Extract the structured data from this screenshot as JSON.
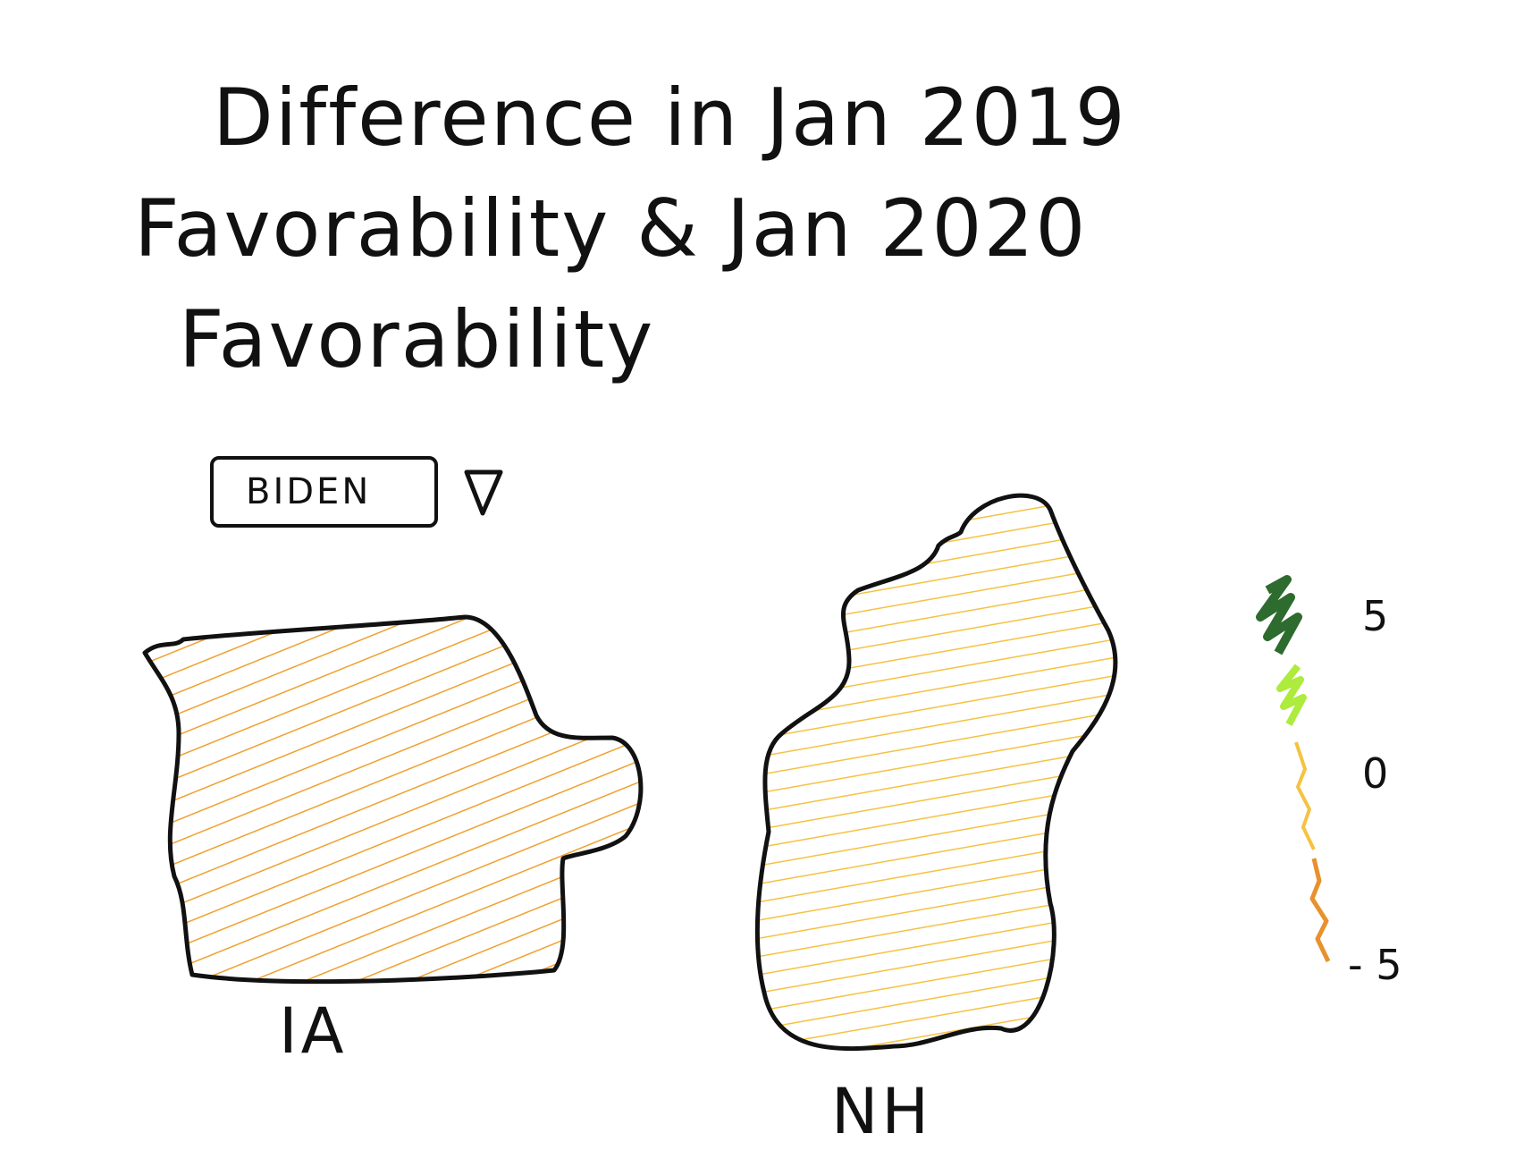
{
  "title": {
    "line1": "Difference in Jan 2019",
    "line2": "Favorability & Jan 2020",
    "line3": "Favorability"
  },
  "selector": {
    "value": "BIDEN"
  },
  "states": [
    {
      "label": "IA",
      "color": "#F0A030"
    },
    {
      "label": "NH",
      "color": "#F5C242"
    }
  ],
  "legend": {
    "ticks": [
      "5",
      "0",
      "- 5"
    ],
    "colors": [
      "#2E6B2E",
      "#ADEB3C",
      "#F5C242",
      "#E8912F"
    ]
  }
}
